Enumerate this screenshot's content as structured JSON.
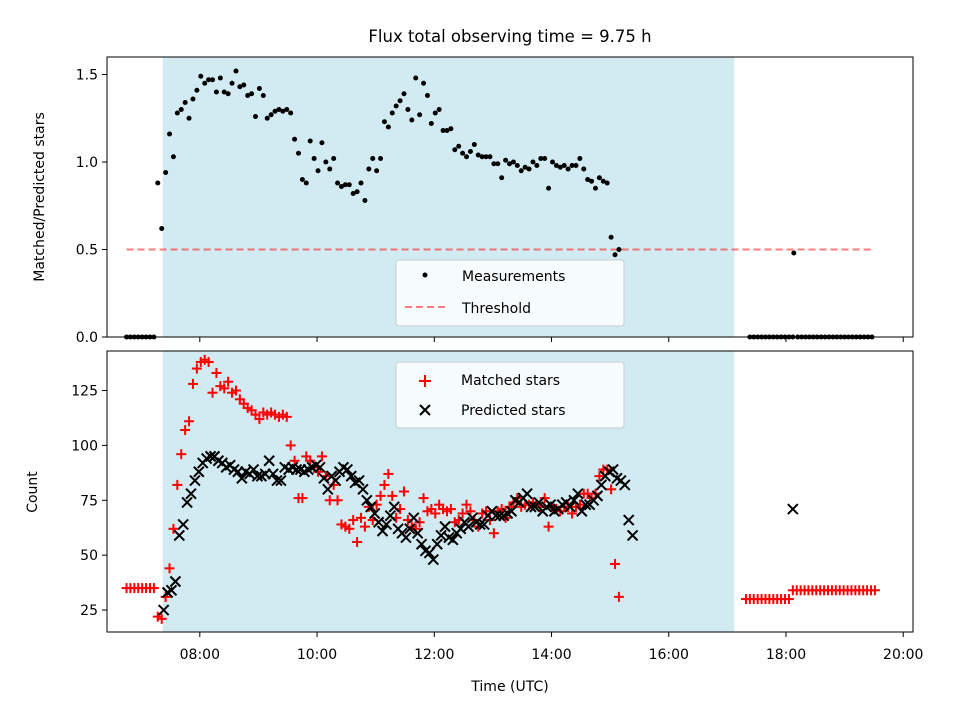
{
  "figure": {
    "title": "Flux total observing time = 9.75 h",
    "xlabel": "Time (UTC)"
  },
  "colors": {
    "shade": "#add8e6",
    "threshold": "#ff0000",
    "matched": "#ff0000",
    "predicted": "#000000",
    "measurements": "#000000"
  },
  "chart_data": [
    {
      "type": "scatter",
      "ylabel": "Matched/Predicted stars",
      "xlim": [
        "06:25",
        "20:10"
      ],
      "ylim": [
        0,
        1.6
      ],
      "yticks": [
        0.0,
        0.5,
        1.0,
        1.5
      ],
      "ytick_labels": [
        "0.0",
        "0.5",
        "1.0",
        "1.5"
      ],
      "xticks": [
        "08:00",
        "10:00",
        "12:00",
        "14:00",
        "16:00",
        "18:00",
        "20:00"
      ],
      "shaded_span": [
        "07:22",
        "17:07"
      ],
      "legend": {
        "placement": "lower-center",
        "entries": [
          {
            "label": "Measurements",
            "marker": "dot"
          },
          {
            "label": "Threshold",
            "marker": "dashed-line"
          }
        ]
      },
      "threshold": {
        "value": 0.5,
        "x_range": [
          "06:45",
          "19:30"
        ]
      },
      "series": [
        {
          "name": "Measurements",
          "x_start": "06:45",
          "x_step_minutes": 4,
          "values": [
            0,
            0,
            0,
            0,
            0,
            0,
            0,
            0,
            0.88,
            0.62,
            0.94,
            1.16,
            1.03,
            1.28,
            1.3,
            1.34,
            1.25,
            1.36,
            1.41,
            1.49,
            1.45,
            1.47,
            1.47,
            1.4,
            1.48,
            1.4,
            1.39,
            1.45,
            1.52,
            1.43,
            1.44,
            1.38,
            1.39,
            1.26,
            1.42,
            1.38,
            1.25,
            1.27,
            1.29,
            1.3,
            1.29,
            1.3,
            1.28,
            1.13,
            1.05,
            0.9,
            0.88,
            1.12,
            1.02,
            0.95,
            1.11,
            1.0,
            0.96,
            1.02,
            0.88,
            0.86,
            0.87,
            0.87,
            0.82,
            0.83,
            0.88,
            0.78,
            0.96,
            1.02,
            0.95,
            1.02,
            1.23,
            1.2,
            1.28,
            1.32,
            1.35,
            1.39,
            1.3,
            1.24,
            1.48,
            1.27,
            1.45,
            1.38,
            1.22,
            1.28,
            1.3,
            1.18,
            1.18,
            1.19,
            1.07,
            1.09,
            1.05,
            1.03,
            1.06,
            1.1,
            1.04,
            1.03,
            1.03,
            1.03,
            0.99,
            0.99,
            0.91,
            1.01,
            0.99,
            1.0,
            0.98,
            0.95,
            0.97,
            0.96,
            1.0,
            0.98,
            1.02,
            1.02,
            0.85,
            1.0,
            0.98,
            0.97,
            0.98,
            0.96,
            0.98,
            0.98,
            1.02,
            0.96,
            0.9,
            0.89,
            0.85,
            0.91,
            0.89,
            0.88,
            0.57,
            0.47,
            0.5
          ],
          "extra_points": [
            {
              "x": "18:08",
              "y": 0.48
            },
            {
              "x_start": "17:23",
              "x_step_minutes": 4,
              "count": 12,
              "y": 0
            },
            {
              "x_start": "18:12",
              "x_step_minutes": 4,
              "count": 20,
              "y": 0
            }
          ]
        }
      ]
    },
    {
      "type": "scatter",
      "ylabel": "Count",
      "xlim": [
        "06:25",
        "20:10"
      ],
      "ylim": [
        15,
        143
      ],
      "yticks": [
        25,
        50,
        75,
        100,
        125
      ],
      "ytick_labels": [
        "25",
        "50",
        "75",
        "100",
        "125"
      ],
      "xticks": [
        "08:00",
        "10:00",
        "12:00",
        "14:00",
        "16:00",
        "18:00",
        "20:00"
      ],
      "xtick_labels": [
        "08:00",
        "10:00",
        "12:00",
        "14:00",
        "16:00",
        "18:00",
        "20:00"
      ],
      "shaded_span": [
        "07:22",
        "17:07"
      ],
      "legend": {
        "placement": "upper-center",
        "entries": [
          {
            "label": "Matched stars",
            "marker": "plus"
          },
          {
            "label": "Predicted stars",
            "marker": "x"
          }
        ]
      },
      "series": [
        {
          "name": "Matched stars",
          "x_start": "06:45",
          "x_step_minutes": 4,
          "values": [
            35,
            35,
            35,
            35,
            35,
            35,
            35,
            35,
            22,
            21,
            31,
            44,
            62,
            82,
            96,
            107,
            111,
            128,
            135,
            138,
            139,
            138,
            124,
            133,
            127,
            126,
            129,
            124,
            125,
            121,
            119,
            117,
            116,
            114,
            112,
            115,
            114,
            115,
            114,
            113,
            114,
            113,
            100,
            93,
            76,
            76,
            95,
            93,
            90,
            88,
            95,
            86,
            75,
            82,
            75,
            64,
            63,
            62,
            66,
            56,
            67,
            63,
            72,
            66,
            73,
            77,
            82,
            87,
            77,
            67,
            71,
            79,
            66,
            63,
            62,
            65,
            76,
            70,
            71,
            69,
            73,
            71,
            70,
            71,
            65,
            66,
            69,
            73,
            70,
            66,
            63,
            69,
            70,
            66,
            60,
            70,
            71,
            67,
            72,
            74,
            76,
            72,
            73,
            73,
            74,
            73,
            72,
            76,
            63,
            72,
            71,
            70,
            72,
            72,
            69,
            72,
            73,
            78,
            78,
            76,
            78,
            86,
            89,
            89,
            80,
            46,
            31
          ],
          "extra_points": [
            {
              "x_start": "17:19",
              "x_step_minutes": 4,
              "count": 12,
              "y": 30
            },
            {
              "x_start": "18:07",
              "x_step_minutes": 4,
              "count": 22,
              "y": 34
            }
          ]
        },
        {
          "name": "Predicted stars",
          "x_start": "07:23",
          "x_step_minutes": 4,
          "values": [
            25,
            33,
            34,
            38,
            59,
            64,
            74,
            78,
            84,
            88,
            92,
            94,
            95,
            95,
            93,
            92,
            90,
            91,
            89,
            88,
            85,
            88,
            87,
            89,
            86,
            86,
            87,
            93,
            87,
            84,
            84,
            90,
            89,
            90,
            89,
            89,
            88,
            89,
            90,
            91,
            90,
            85,
            80,
            86,
            84,
            88,
            90,
            89,
            86,
            83,
            84,
            80,
            75,
            72,
            69,
            65,
            61,
            64,
            68,
            72,
            62,
            60,
            58,
            62,
            67,
            60,
            55,
            52,
            51,
            48,
            55,
            59,
            63,
            58,
            57,
            60,
            62,
            65,
            63,
            67,
            65,
            64,
            64,
            68,
            70,
            68,
            68,
            68,
            69,
            70,
            75,
            74,
            76,
            78,
            72,
            72,
            74,
            70,
            72,
            73,
            70,
            71,
            73,
            74,
            72,
            75,
            78,
            70,
            73,
            73,
            75,
            77,
            82,
            86,
            88,
            89,
            85,
            84,
            82,
            66,
            59
          ],
          "extra_points": [
            {
              "x": "18:07",
              "y": 71
            }
          ]
        }
      ]
    }
  ]
}
